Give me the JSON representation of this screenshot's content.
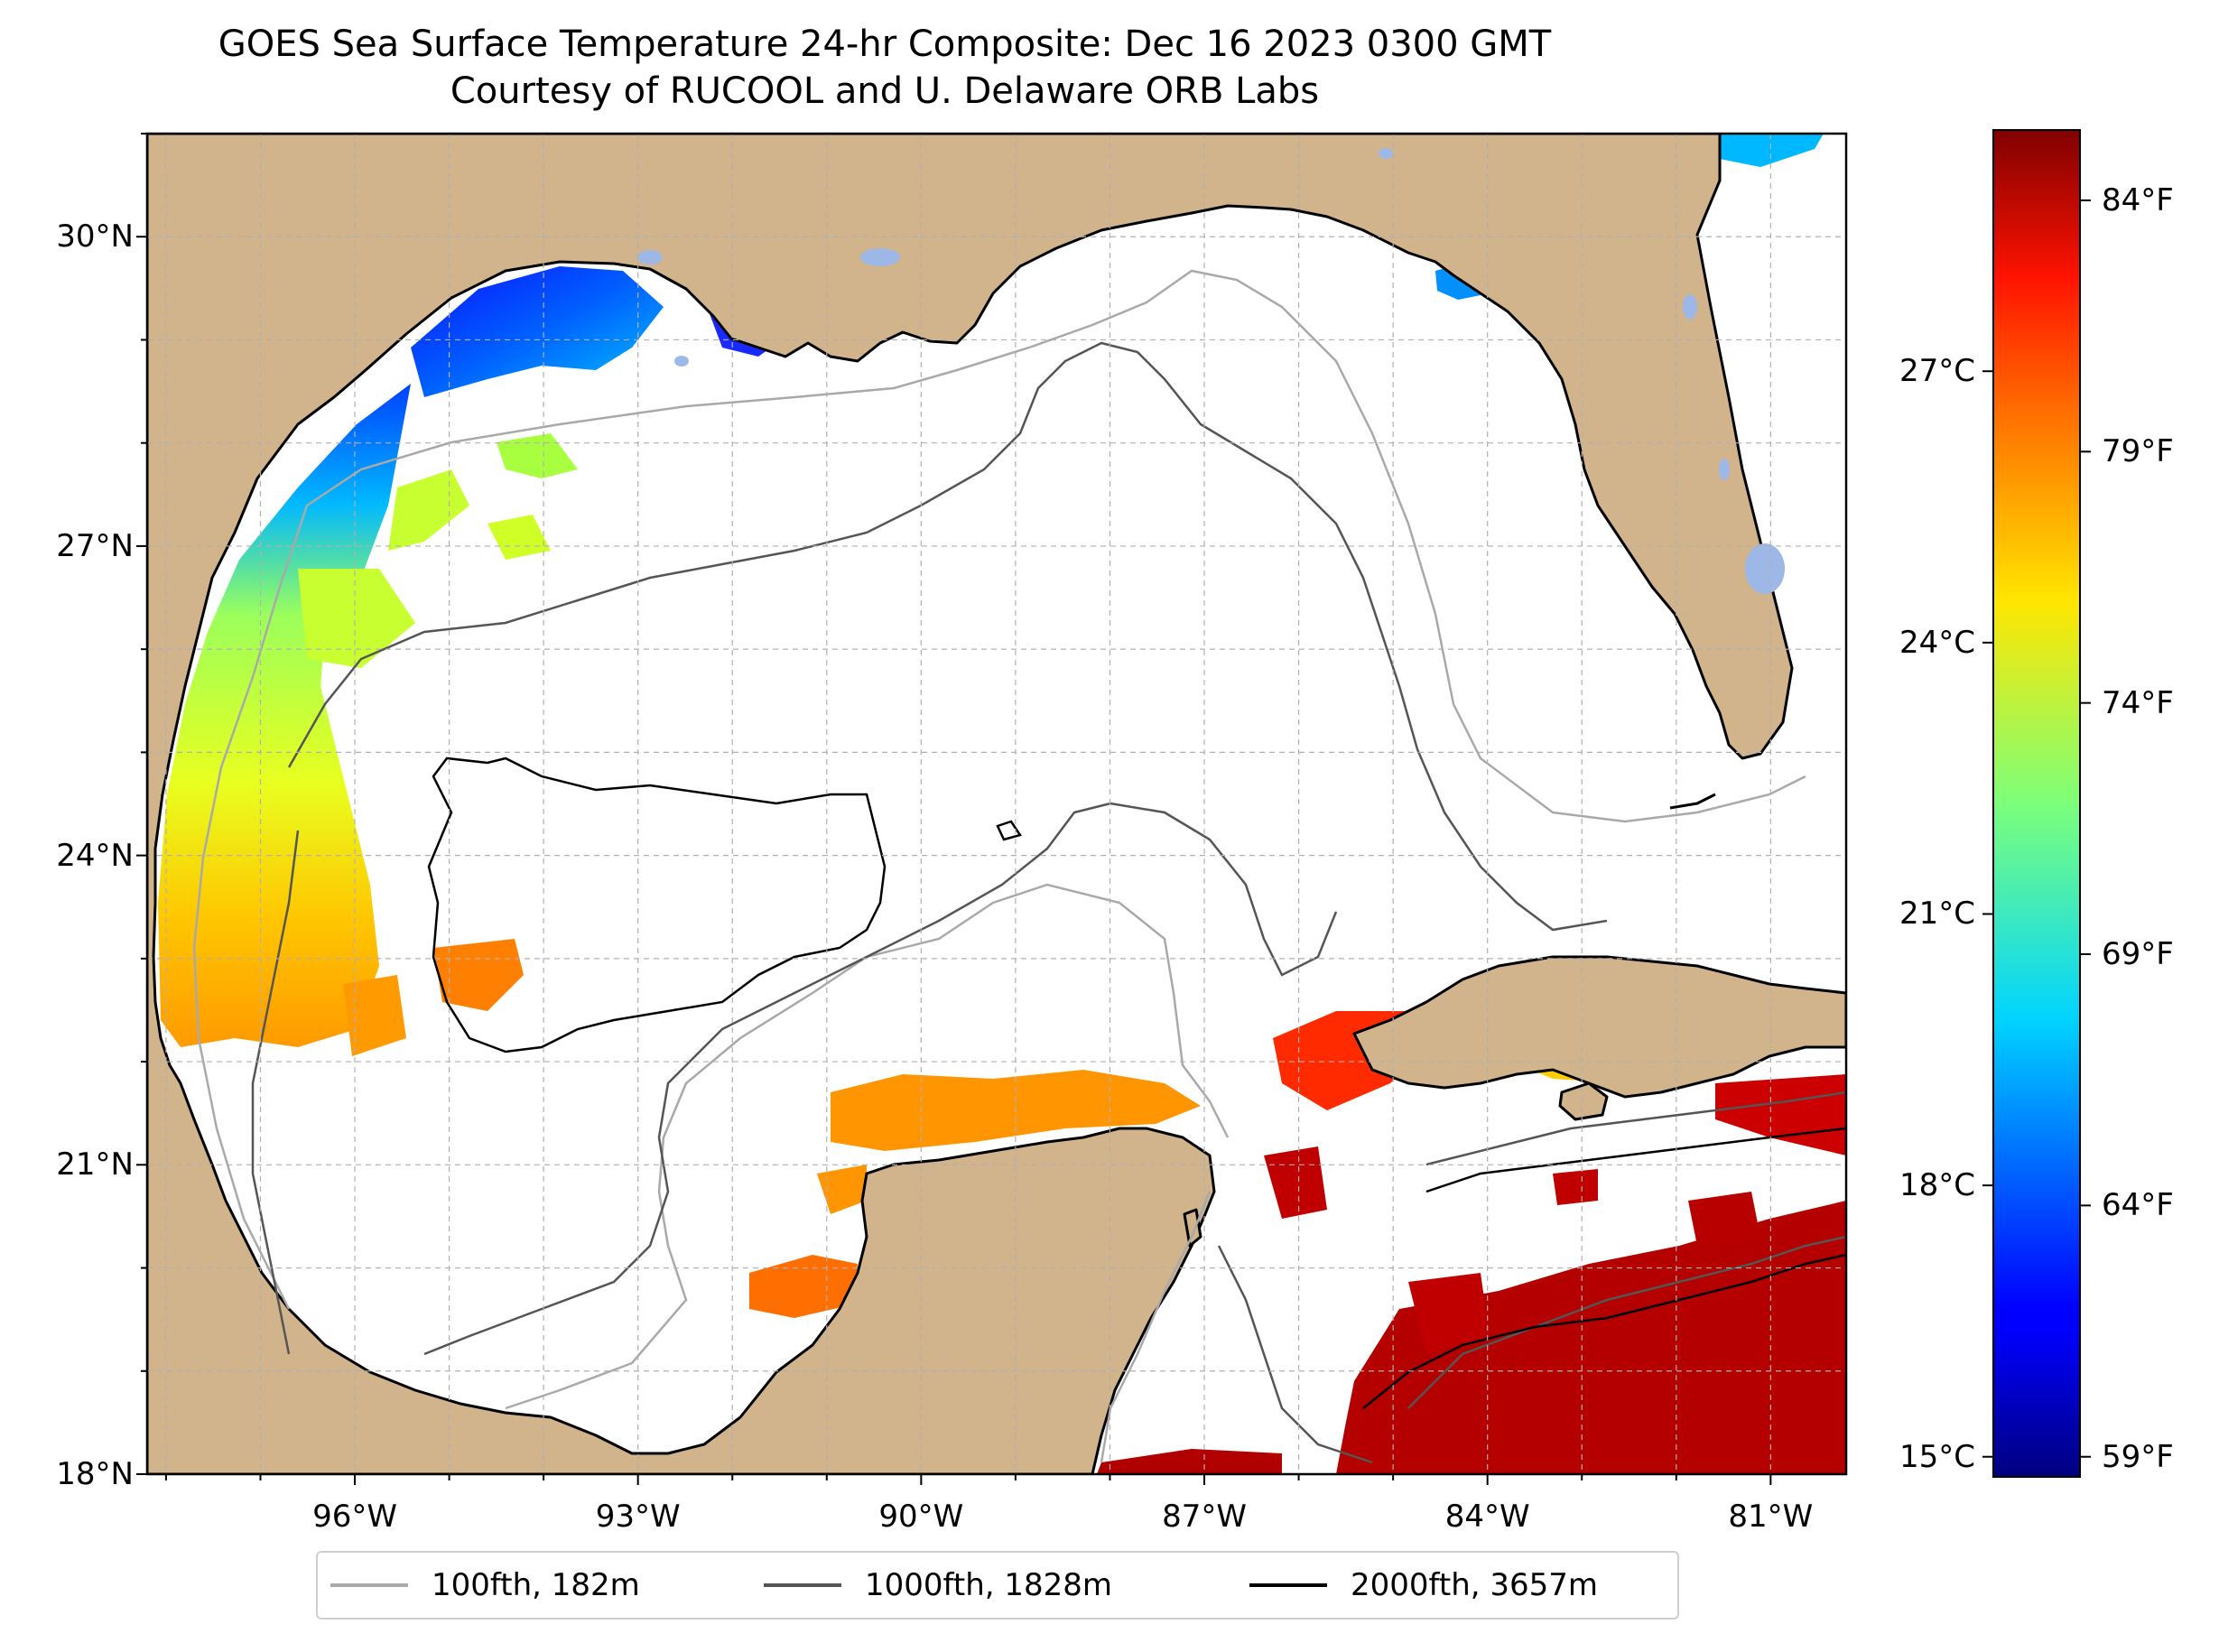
{
  "title_line1": "GOES Sea Surface Temperature 24-hr Composite: Dec 16 2023 0300 GMT",
  "title_line2": "Courtesy of RUCOOL and U. Delaware ORB Labs",
  "map": {
    "lon_range": [
      -98.2,
      -80.2
    ],
    "lat_range": [
      18.0,
      31.0
    ],
    "lat_ticks": [
      {
        "value": 30,
        "label": "30°N"
      },
      {
        "value": 27,
        "label": "27°N"
      },
      {
        "value": 24,
        "label": "24°N"
      },
      {
        "value": 21,
        "label": "21°N"
      },
      {
        "value": 18,
        "label": "18°N"
      }
    ],
    "lon_ticks": [
      {
        "value": -96,
        "label": "96°W"
      },
      {
        "value": -93,
        "label": "93°W"
      },
      {
        "value": -90,
        "label": "90°W"
      },
      {
        "value": -87,
        "label": "87°W"
      },
      {
        "value": -84,
        "label": "84°W"
      },
      {
        "value": -81,
        "label": "81°W"
      }
    ],
    "gridlines": "dashed, 1° spacing",
    "colors": {
      "land": "#D2B48C",
      "ocean": "#FFFFFF",
      "lakes": "#9DB8E6",
      "coastline": "#000000"
    }
  },
  "colorbar": {
    "colormap": "jet",
    "celsius_ticks": [
      {
        "value": 27,
        "label": "27°C"
      },
      {
        "value": 24,
        "label": "24°C"
      },
      {
        "value": 21,
        "label": "21°C"
      },
      {
        "value": 18,
        "label": "18°C"
      },
      {
        "value": 15,
        "label": "15°C"
      }
    ],
    "fahrenheit_ticks": [
      {
        "value": 84,
        "label": "84°F"
      },
      {
        "value": 79,
        "label": "79°F"
      },
      {
        "value": 74,
        "label": "74°F"
      },
      {
        "value": 69,
        "label": "69°F"
      },
      {
        "value": 64,
        "label": "64°F"
      },
      {
        "value": 59,
        "label": "59°F"
      }
    ]
  },
  "legend": {
    "items": [
      {
        "label": "100fth, 182m",
        "color": "#A9A9A9"
      },
      {
        "label": "1000fth, 1828m",
        "color": "#555555"
      },
      {
        "label": "2000fth, 3657m",
        "color": "#000000"
      }
    ]
  }
}
